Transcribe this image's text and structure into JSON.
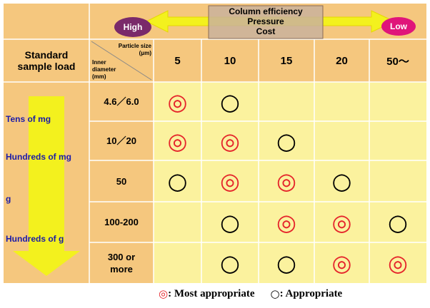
{
  "header": {
    "banner": {
      "high": "High",
      "low": "Low",
      "factors": [
        "Column efficiency",
        "Pressure",
        "Cost"
      ]
    },
    "load_header": "Standard sample load",
    "particle_size_header": "Particle size (μm)",
    "diameter_header": "Inner diameter (mm)",
    "particle_sizes": [
      "5",
      "10",
      "15",
      "20",
      "50～"
    ]
  },
  "load_scale": [
    "Tens of mg",
    "Hundreds of mg",
    "g",
    "Hundreds of g"
  ],
  "table": {
    "rows": [
      {
        "diameter": "4.6／6.0",
        "cells": [
          "◎",
          "○",
          null,
          null,
          null
        ]
      },
      {
        "diameter": "10／20",
        "cells": [
          "◎",
          "◎",
          "○",
          null,
          null
        ]
      },
      {
        "diameter": "50",
        "cells": [
          "○",
          "◎",
          "◎",
          "○",
          null
        ]
      },
      {
        "diameter": "100-200",
        "cells": [
          null,
          "○",
          "◎",
          "◎",
          "○"
        ]
      },
      {
        "diameter": "300 or more",
        "cells": [
          null,
          "○",
          "○",
          "◎",
          "◎"
        ]
      }
    ]
  },
  "legend": [
    {
      "symbol": "◎",
      "label": ": Most appropriate",
      "color": "#e5242b"
    },
    {
      "symbol": "○",
      "label": ": Appropriate",
      "color": "#000000"
    }
  ]
}
